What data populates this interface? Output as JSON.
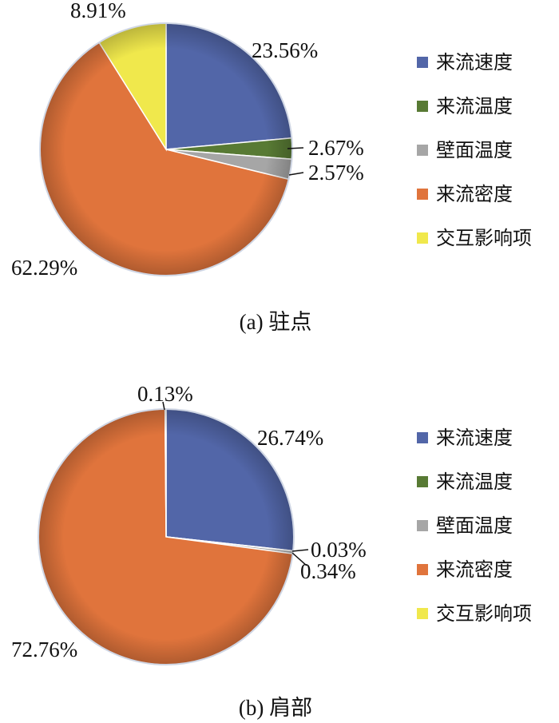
{
  "legend_labels": [
    "来流速度",
    "来流温度",
    "壁面温度",
    "来流密度",
    "交互影响项"
  ],
  "colors": {
    "来流速度": "#5266a8",
    "来流温度": "#587a34",
    "壁面温度": "#a6a6a6",
    "来流密度": "#e0743c",
    "交互影响项": "#f0e84c"
  },
  "chart_data": [
    {
      "type": "pie",
      "caption": "(a) 驻点",
      "slices": [
        {
          "label": "来流速度",
          "value": 23.56,
          "display": "23.56%"
        },
        {
          "label": "来流温度",
          "value": 2.67,
          "display": "2.67%"
        },
        {
          "label": "壁面温度",
          "value": 2.57,
          "display": "2.57%"
        },
        {
          "label": "来流密度",
          "value": 62.29,
          "display": "62.29%"
        },
        {
          "label": "交互影响项",
          "value": 8.91,
          "display": "8.91%"
        }
      ],
      "legend": [
        "来流速度",
        "来流温度",
        "壁面温度",
        "来流密度",
        "交互影响项"
      ],
      "legend_position": "right"
    },
    {
      "type": "pie",
      "caption": "(b) 肩部",
      "slices": [
        {
          "label": "来流速度",
          "value": 26.74,
          "display": "26.74%"
        },
        {
          "label": "来流温度",
          "value": 0.03,
          "display": "0.03%"
        },
        {
          "label": "壁面温度",
          "value": 0.34,
          "display": "0.34%"
        },
        {
          "label": "来流密度",
          "value": 72.76,
          "display": "72.76%"
        },
        {
          "label": "交互影响项",
          "value": 0.13,
          "display": "0.13%"
        }
      ],
      "legend": [
        "来流速度",
        "来流温度",
        "壁面温度",
        "来流密度",
        "交互影响项"
      ],
      "legend_position": "right"
    }
  ]
}
